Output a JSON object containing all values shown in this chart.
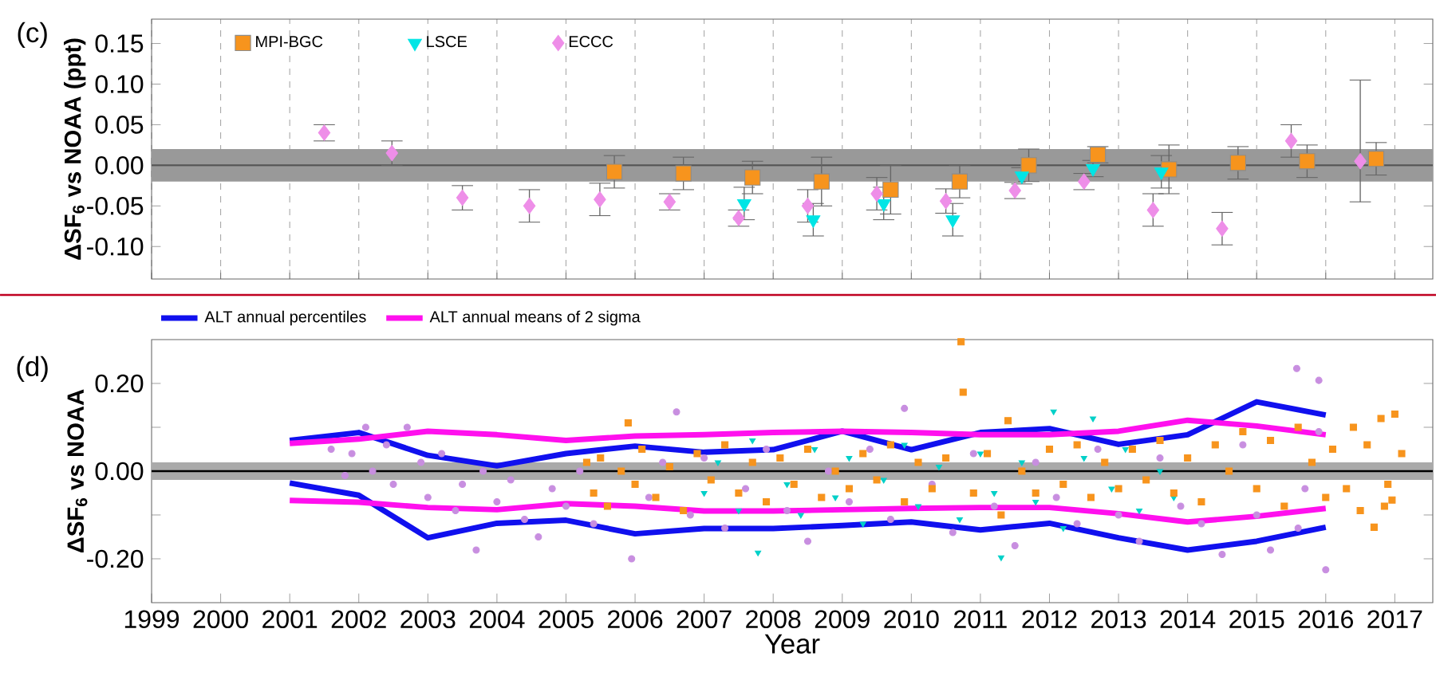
{
  "chart_data": [
    {
      "type": "scatter",
      "title": "(c)",
      "ylabel": "ΔSF$_{6}$ vs NOAA (ppt)",
      "xlim": [
        1999,
        2017.55
      ],
      "ylim": [
        -0.14,
        0.18
      ],
      "xticks": [
        1999,
        2000,
        2001,
        2002,
        2003,
        2004,
        2005,
        2006,
        2007,
        2008,
        2009,
        2010,
        2011,
        2012,
        2013,
        2014,
        2015,
        2016,
        2017
      ],
      "yticks": [
        {
          "value": 0.15,
          "label": "0.15"
        },
        {
          "value": 0.1,
          "label": "0.10"
        },
        {
          "value": 0.05,
          "label": "0.05"
        },
        {
          "value": 0,
          "label": "0.00"
        },
        {
          "value": -0.05,
          "label": "-0.05"
        },
        {
          "value": -0.1,
          "label": "-0.10"
        }
      ],
      "tick_labels": "y",
      "grid": "x",
      "legend": "top left",
      "bands": [
        {
          "axis": "y",
          "from": -0.02,
          "to": 0.02,
          "color": "#999999"
        }
      ],
      "ref_lines": [
        {
          "axis": "y",
          "value": 0,
          "color": "#555555"
        }
      ],
      "series": [
        {
          "name": "MPI-BGC",
          "color": "#f7941d",
          "marker": "square",
          "x": [
            2005.7,
            2006.7,
            2007.7,
            2008.7,
            2009.7,
            2010.7,
            2011.7,
            2012.7,
            2013.73,
            2014.73,
            2015.73,
            2016.73
          ],
          "values": [
            -0.008,
            -0.01,
            -0.015,
            -0.02,
            -0.03,
            -0.02,
            0.0,
            0.013,
            -0.005,
            0.003,
            0.005,
            0.008
          ],
          "errors": [
            0.02,
            0.02,
            0.02,
            0.03,
            0.03,
            0.02,
            0.02,
            0.01,
            0.03,
            0.02,
            0.02,
            0.02
          ]
        },
        {
          "name": "LSCE",
          "color": "#00e5e5",
          "marker": "triangle",
          "x": [
            2007.58,
            2008.58,
            2009.6,
            2010.6,
            2011.6,
            2012.63,
            2013.62
          ],
          "values": [
            -0.047,
            -0.067,
            -0.047,
            -0.067,
            -0.013,
            -0.004,
            -0.008
          ],
          "errors": [
            0.02,
            0.02,
            0.02,
            0.02,
            0.01,
            0.01,
            0.02
          ]
        },
        {
          "name": "ECCC",
          "color": "#ee8ee8",
          "marker": "diamond",
          "x": [
            2001.5,
            2002.48,
            2003.5,
            2004.47,
            2005.49,
            2006.5,
            2007.5,
            2008.5,
            2009.5,
            2010.5,
            2011.5,
            2012.5,
            2013.5,
            2014.5,
            2015.5,
            2016.5
          ],
          "values": [
            0.04,
            0.015,
            -0.04,
            -0.05,
            -0.042,
            -0.045,
            -0.065,
            -0.05,
            -0.035,
            -0.044,
            -0.031,
            -0.02,
            -0.055,
            -0.078,
            0.03,
            0.005
          ],
          "errors": [
            0.01,
            0.015,
            0.015,
            0.02,
            0.02,
            0.01,
            0.01,
            0.02,
            0.02,
            0.015,
            0.01,
            0.01,
            0.02,
            0.02,
            0.02,
            [
              -0.045,
              0.105
            ]
          ]
        }
      ]
    },
    {
      "type": "scatter",
      "title": "(d)",
      "xlabel": "Year",
      "ylabel": "ΔSF$_{6}$ vs NOAA",
      "xlim": [
        1999,
        2017.55
      ],
      "ylim": [
        -0.3,
        0.3
      ],
      "xticks": [
        1999,
        2000,
        2001,
        2002,
        2003,
        2004,
        2005,
        2006,
        2007,
        2008,
        2009,
        2010,
        2011,
        2012,
        2013,
        2014,
        2015,
        2016,
        2017
      ],
      "yticks": [
        {
          "value": 0.2,
          "label": "0.20"
        },
        {
          "value": 0.1,
          "label": null
        },
        {
          "value": 0,
          "label": "0.00"
        },
        {
          "value": -0.1,
          "label": null
        },
        {
          "value": -0.2,
          "label": "-0.20"
        }
      ],
      "legend": "top",
      "bands": [
        {
          "axis": "y",
          "from": -0.02,
          "to": 0.02,
          "color": "#aaaaaa"
        }
      ],
      "ref_lines": [
        {
          "axis": "y",
          "value": 0,
          "color": "#000000"
        }
      ],
      "series": [
        {
          "type": "scatter",
          "color": "#c88ee0",
          "marker": "circle",
          "x": [
            2001.6,
            2001.8,
            2001.9,
            2002.1,
            2002.2,
            2002.4,
            2002.5,
            2002.7,
            2002.9,
            2003.0,
            2003.2,
            2003.4,
            2003.5,
            2003.7,
            2003.8,
            2004.0,
            2004.2,
            2004.4,
            2004.6,
            2004.8,
            2005.0,
            2005.2,
            2005.4,
            2005.95,
            2006.2,
            2006.4,
            2006.6,
            2006.8,
            2007.0,
            2007.3,
            2007.6,
            2007.9,
            2008.2,
            2008.5,
            2008.8,
            2009.1,
            2009.4,
            2009.7,
            2009.9,
            2010.3,
            2010.6,
            2010.9,
            2011.2,
            2011.5,
            2011.8,
            2012.1,
            2012.4,
            2012.7,
            2013.0,
            2013.3,
            2013.6,
            2013.9,
            2014.2,
            2014.5,
            2014.8,
            2015.0,
            2015.2,
            2015.58,
            2015.6,
            2015.7,
            2015.9,
            2015.9,
            2016.0
          ],
          "values": [
            0.05,
            -0.01,
            0.04,
            0.1,
            0.0,
            0.06,
            -0.03,
            0.1,
            0.02,
            -0.06,
            0.04,
            -0.09,
            -0.03,
            -0.18,
            0.0,
            -0.07,
            -0.02,
            -0.11,
            -0.15,
            -0.04,
            -0.08,
            0.0,
            -0.12,
            -0.2,
            -0.06,
            0.02,
            0.135,
            -0.1,
            0.03,
            -0.13,
            -0.04,
            0.05,
            -0.09,
            -0.16,
            0.0,
            -0.07,
            0.05,
            -0.11,
            0.143,
            -0.03,
            -0.14,
            0.04,
            -0.08,
            -0.17,
            0.02,
            -0.06,
            -0.12,
            0.05,
            -0.1,
            -0.16,
            0.03,
            -0.08,
            -0.12,
            -0.19,
            0.06,
            -0.1,
            -0.18,
            0.234,
            -0.13,
            -0.04,
            0.207,
            0.09,
            -0.225
          ]
        },
        {
          "type": "scatter",
          "color": "#00d0c8",
          "marker": "triangle",
          "x": [
            2007.0,
            2007.2,
            2007.5,
            2007.7,
            2007.78,
            2008.2,
            2008.4,
            2008.6,
            2008.9,
            2009.1,
            2009.3,
            2009.6,
            2009.9,
            2010.1,
            2010.4,
            2010.7,
            2011.0,
            2011.2,
            2011.3,
            2011.6,
            2011.8,
            2012.06,
            2012.2,
            2012.5,
            2012.63,
            2012.9,
            2013.1,
            2013.3,
            2013.6,
            2013.8
          ],
          "values": [
            -0.05,
            0.02,
            -0.09,
            0.07,
            -0.186,
            -0.03,
            -0.1,
            0.05,
            -0.06,
            0.03,
            -0.12,
            -0.02,
            0.06,
            -0.08,
            0.01,
            -0.11,
            0.04,
            -0.05,
            -0.197,
            0.02,
            -0.07,
            0.136,
            -0.13,
            0.03,
            0.12,
            -0.04,
            0.05,
            -0.09,
            0.0,
            -0.06
          ]
        },
        {
          "type": "scatter",
          "color": "#f7941d",
          "marker": "square",
          "x": [
            2005.3,
            2005.4,
            2005.5,
            2005.6,
            2005.8,
            2005.9,
            2006.0,
            2006.1,
            2006.3,
            2006.5,
            2006.7,
            2006.9,
            2007.1,
            2007.3,
            2007.5,
            2007.7,
            2007.9,
            2008.1,
            2008.3,
            2008.5,
            2008.7,
            2008.9,
            2009.1,
            2009.3,
            2009.5,
            2009.7,
            2009.9,
            2010.1,
            2010.3,
            2010.5,
            2010.72,
            2010.75,
            2010.9,
            2011.1,
            2011.3,
            2011.4,
            2011.6,
            2011.8,
            2012.0,
            2012.2,
            2012.4,
            2012.6,
            2012.8,
            2013.0,
            2013.2,
            2013.4,
            2013.6,
            2013.8,
            2014.0,
            2014.2,
            2014.4,
            2014.6,
            2014.8,
            2015.0,
            2015.2,
            2015.4,
            2015.6,
            2015.8,
            2016.0,
            2016.1,
            2016.3,
            2016.4,
            2016.5,
            2016.6,
            2016.7,
            2016.8,
            2016.85,
            2016.9,
            2016.96,
            2017.0,
            2017.1
          ],
          "values": [
            0.02,
            -0.05,
            0.03,
            -0.08,
            0.0,
            0.11,
            -0.03,
            0.05,
            -0.06,
            0.01,
            -0.09,
            0.04,
            -0.02,
            0.06,
            -0.05,
            0.02,
            -0.07,
            0.03,
            -0.03,
            0.05,
            -0.06,
            0.0,
            -0.04,
            0.04,
            -0.02,
            0.06,
            -0.07,
            0.02,
            -0.04,
            0.03,
            0.295,
            0.18,
            -0.05,
            0.04,
            -0.1,
            0.115,
            0.0,
            -0.05,
            0.05,
            -0.03,
            0.06,
            -0.06,
            0.02,
            -0.04,
            0.05,
            -0.02,
            0.07,
            -0.05,
            0.03,
            -0.07,
            0.06,
            0.0,
            0.09,
            -0.04,
            0.07,
            -0.08,
            0.1,
            0.02,
            -0.06,
            0.05,
            -0.04,
            0.1,
            -0.09,
            0.06,
            -0.128,
            0.12,
            -0.08,
            -0.03,
            -0.066,
            0.13,
            0.04
          ]
        },
        {
          "type": "line",
          "name": "ALT annual percentiles",
          "color": "#1010ee",
          "x": [
            2001,
            2002,
            2003,
            2004,
            2005,
            2006,
            2007,
            2008,
            2009,
            2010,
            2011,
            2012,
            2013,
            2014,
            2015,
            2016
          ],
          "values": [
            0.07,
            0.088,
            0.036,
            0.012,
            0.04,
            0.057,
            0.043,
            0.049,
            0.091,
            0.049,
            0.088,
            0.097,
            0.061,
            0.083,
            0.158,
            0.128
          ]
        },
        {
          "type": "line",
          "color": "#1010ee",
          "x": [
            2001,
            2002,
            2003,
            2004,
            2005,
            2006,
            2007,
            2008,
            2009,
            2010,
            2011,
            2012,
            2013,
            2014,
            2015,
            2016
          ],
          "values": [
            -0.027,
            -0.055,
            -0.152,
            -0.119,
            -0.112,
            -0.143,
            -0.131,
            -0.131,
            -0.124,
            -0.116,
            -0.134,
            -0.119,
            -0.152,
            -0.18,
            -0.16,
            -0.128
          ]
        },
        {
          "type": "line",
          "name": "ALT annual means of 2 sigma",
          "color": "#ff10ee",
          "x": [
            2001,
            2002,
            2003,
            2004,
            2005,
            2006,
            2007,
            2008,
            2009,
            2010,
            2011,
            2012,
            2013,
            2014,
            2015,
            2016
          ],
          "values": [
            0.063,
            0.073,
            0.091,
            0.083,
            0.07,
            0.08,
            0.083,
            0.088,
            0.091,
            0.088,
            0.083,
            0.083,
            0.091,
            0.116,
            0.103,
            0.083
          ]
        },
        {
          "type": "line",
          "color": "#ff10ee",
          "x": [
            2001,
            2002,
            2003,
            2004,
            2005,
            2006,
            2007,
            2008,
            2009,
            2010,
            2011,
            2012,
            2013,
            2014,
            2015,
            2016
          ],
          "values": [
            -0.067,
            -0.071,
            -0.083,
            -0.088,
            -0.074,
            -0.08,
            -0.091,
            -0.091,
            -0.088,
            -0.085,
            -0.083,
            -0.083,
            -0.097,
            -0.116,
            -0.103,
            -0.085
          ]
        }
      ]
    }
  ]
}
